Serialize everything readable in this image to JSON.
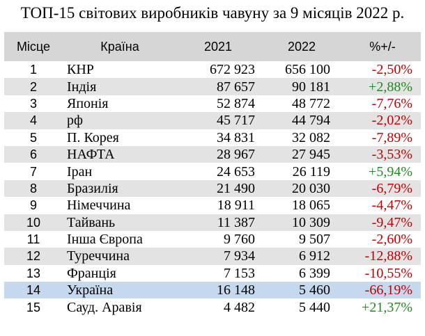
{
  "title": "ТОП-15 світових виробників чавуну за 9 місяців 2022 р.",
  "table": {
    "headers": {
      "rank": "Місце",
      "country": "Країна",
      "y2021": "2021",
      "y2022": "2022",
      "change": "%+/-"
    },
    "rows": [
      {
        "rank": "1",
        "country": "КНР",
        "y2021": "672 923",
        "y2022": "656 100",
        "change": "-2,50%",
        "trend": "neg"
      },
      {
        "rank": "2",
        "country": "Індія",
        "y2021": "87 657",
        "y2022": "90 181",
        "change": "+2,88%",
        "trend": "pos"
      },
      {
        "rank": "3",
        "country": "Японія",
        "y2021": "52 874",
        "y2022": "48 772",
        "change": "-7,76%",
        "trend": "neg"
      },
      {
        "rank": "4",
        "country": "рф",
        "y2021": "45 717",
        "y2022": "44 794",
        "change": "-2,02%",
        "trend": "neg"
      },
      {
        "rank": "5",
        "country": "П. Корея",
        "y2021": "34 831",
        "y2022": "32 082",
        "change": "-7,89%",
        "trend": "neg"
      },
      {
        "rank": "6",
        "country": "НАФТА",
        "y2021": "28 967",
        "y2022": "27 945",
        "change": "-3,53%",
        "trend": "neg"
      },
      {
        "rank": "7",
        "country": "Іран",
        "y2021": "24 653",
        "y2022": "26 119",
        "change": "+5,94%",
        "trend": "pos"
      },
      {
        "rank": "8",
        "country": "Бразилія",
        "y2021": "21 490",
        "y2022": "20 030",
        "change": "-6,79%",
        "trend": "neg"
      },
      {
        "rank": "9",
        "country": "Німеччина",
        "y2021": "18 911",
        "y2022": "18 065",
        "change": "-4,47%",
        "trend": "neg"
      },
      {
        "rank": "10",
        "country": "Тайвань",
        "y2021": "11 387",
        "y2022": "10 309",
        "change": "-9,47%",
        "trend": "neg"
      },
      {
        "rank": "11",
        "country": "Інша Європа",
        "y2021": "9 760",
        "y2022": "9 507",
        "change": "-2,60%",
        "trend": "neg"
      },
      {
        "rank": "12",
        "country": "Туреччина",
        "y2021": "7 934",
        "y2022": "6 912",
        "change": "-12,88%",
        "trend": "neg"
      },
      {
        "rank": "13",
        "country": "Франція",
        "y2021": "7 153",
        "y2022": "6 399",
        "change": "-10,55%",
        "trend": "neg"
      },
      {
        "rank": "14",
        "country": "Україна",
        "y2021": "16 148",
        "y2022": "5 460",
        "change": "-66,19%",
        "trend": "neg",
        "highlight": true
      },
      {
        "rank": "15",
        "country": "Сауд. Аравія",
        "y2021": "4 482",
        "y2022": "5 440",
        "change": "+21,37%",
        "trend": "pos"
      }
    ]
  },
  "colors": {
    "header_bg": "#d6d6d6",
    "alt_row_bg": "#e3e3e3",
    "highlight_row_bg": "#c6d8ee",
    "negative": "#c00000",
    "positive": "#1f8a1f"
  }
}
